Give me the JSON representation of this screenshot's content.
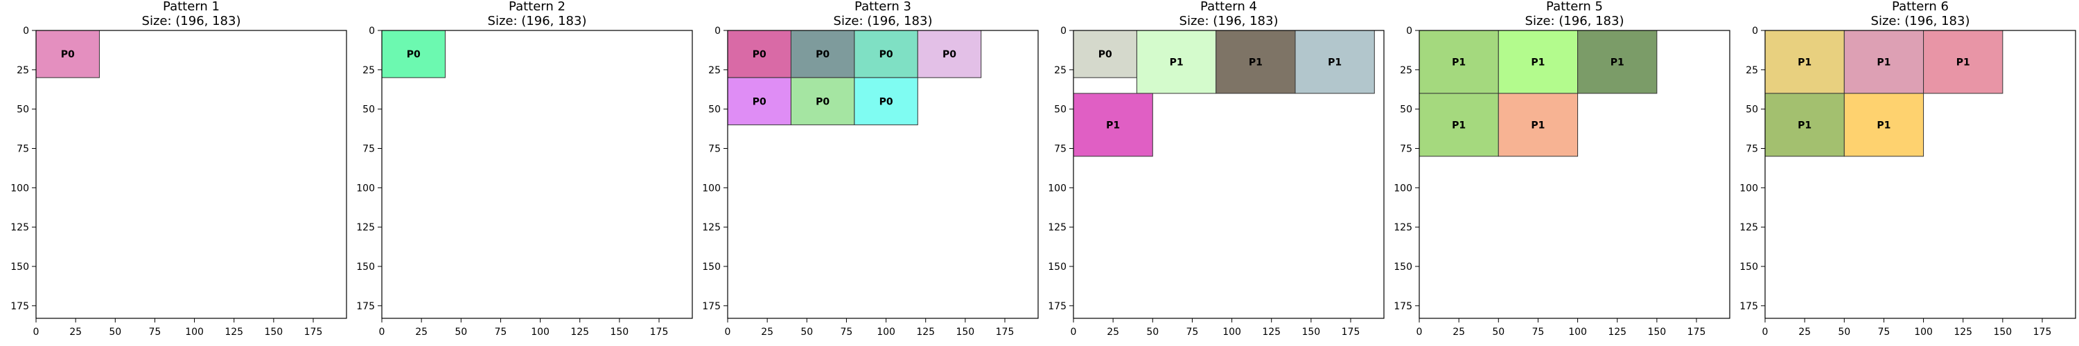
{
  "chart_data": [
    {
      "type": "rect-layout",
      "title": "Pattern 1",
      "subtitle": "Size: (196, 183)",
      "xlim": [
        0,
        196
      ],
      "ylim": [
        0,
        183
      ],
      "y_inverted": true,
      "xticks": [
        0,
        25,
        50,
        75,
        100,
        125,
        150,
        175
      ],
      "yticks": [
        0,
        25,
        50,
        75,
        100,
        125,
        150,
        175
      ],
      "grid": false,
      "rects": [
        {
          "label": "P0",
          "x": 0,
          "y": 0,
          "w": 40,
          "h": 30,
          "color": "#e48fbf"
        }
      ]
    },
    {
      "type": "rect-layout",
      "title": "Pattern 2",
      "subtitle": "Size: (196, 183)",
      "xlim": [
        0,
        196
      ],
      "ylim": [
        0,
        183
      ],
      "y_inverted": true,
      "xticks": [
        0,
        25,
        50,
        75,
        100,
        125,
        150,
        175
      ],
      "yticks": [
        0,
        25,
        50,
        75,
        100,
        125,
        150,
        175
      ],
      "grid": false,
      "rects": [
        {
          "label": "P0",
          "x": 0,
          "y": 0,
          "w": 40,
          "h": 30,
          "color": "#6cf9b0"
        }
      ]
    },
    {
      "type": "rect-layout",
      "title": "Pattern 3",
      "subtitle": "Size: (196, 183)",
      "xlim": [
        0,
        196
      ],
      "ylim": [
        0,
        183
      ],
      "y_inverted": true,
      "xticks": [
        0,
        25,
        50,
        75,
        100,
        125,
        150,
        175
      ],
      "yticks": [
        0,
        25,
        50,
        75,
        100,
        125,
        150,
        175
      ],
      "grid": false,
      "rects": [
        {
          "label": "P0",
          "x": 0,
          "y": 0,
          "w": 40,
          "h": 30,
          "color": "#d96aa6"
        },
        {
          "label": "P0",
          "x": 40,
          "y": 0,
          "w": 40,
          "h": 30,
          "color": "#7e9b9c"
        },
        {
          "label": "P0",
          "x": 80,
          "y": 0,
          "w": 40,
          "h": 30,
          "color": "#7fe0c4"
        },
        {
          "label": "P0",
          "x": 120,
          "y": 0,
          "w": 40,
          "h": 30,
          "color": "#e3c0e7"
        },
        {
          "label": "P0",
          "x": 0,
          "y": 30,
          "w": 40,
          "h": 30,
          "color": "#df8df5"
        },
        {
          "label": "P0",
          "x": 40,
          "y": 30,
          "w": 40,
          "h": 30,
          "color": "#a5e5a2"
        },
        {
          "label": "P0",
          "x": 80,
          "y": 30,
          "w": 40,
          "h": 30,
          "color": "#7ffcf2"
        }
      ]
    },
    {
      "type": "rect-layout",
      "title": "Pattern 4",
      "subtitle": "Size: (196, 183)",
      "xlim": [
        0,
        196
      ],
      "ylim": [
        0,
        183
      ],
      "y_inverted": true,
      "xticks": [
        0,
        25,
        50,
        75,
        100,
        125,
        150,
        175
      ],
      "yticks": [
        0,
        25,
        50,
        75,
        100,
        125,
        150,
        175
      ],
      "grid": false,
      "rects": [
        {
          "label": "P0",
          "x": 0,
          "y": 0,
          "w": 40,
          "h": 30,
          "color": "#d5d9cc"
        },
        {
          "label": "P1",
          "x": 40,
          "y": 0,
          "w": 50,
          "h": 40,
          "color": "#d4fbcc"
        },
        {
          "label": "P1",
          "x": 90,
          "y": 0,
          "w": 50,
          "h": 40,
          "color": "#7e7466"
        },
        {
          "label": "P1",
          "x": 140,
          "y": 0,
          "w": 50,
          "h": 40,
          "color": "#b2c6cc"
        },
        {
          "label": "P1",
          "x": 0,
          "y": 40,
          "w": 50,
          "h": 40,
          "color": "#e05fc4"
        }
      ]
    },
    {
      "type": "rect-layout",
      "title": "Pattern 5",
      "subtitle": "Size: (196, 183)",
      "xlim": [
        0,
        196
      ],
      "ylim": [
        0,
        183
      ],
      "y_inverted": true,
      "xticks": [
        0,
        25,
        50,
        75,
        100,
        125,
        150,
        175
      ],
      "yticks": [
        0,
        25,
        50,
        75,
        100,
        125,
        150,
        175
      ],
      "grid": false,
      "rects": [
        {
          "label": "P1",
          "x": 0,
          "y": 0,
          "w": 50,
          "h": 40,
          "color": "#a4d97e"
        },
        {
          "label": "P1",
          "x": 50,
          "y": 0,
          "w": 50,
          "h": 40,
          "color": "#b3fb8d"
        },
        {
          "label": "P1",
          "x": 100,
          "y": 0,
          "w": 50,
          "h": 40,
          "color": "#7b9c68"
        },
        {
          "label": "P1",
          "x": 0,
          "y": 40,
          "w": 50,
          "h": 40,
          "color": "#a5d97e"
        },
        {
          "label": "P1",
          "x": 50,
          "y": 40,
          "w": 50,
          "h": 40,
          "color": "#f7b393"
        }
      ]
    },
    {
      "type": "rect-layout",
      "title": "Pattern 6",
      "subtitle": "Size: (196, 183)",
      "xlim": [
        0,
        196
      ],
      "ylim": [
        0,
        183
      ],
      "y_inverted": true,
      "xticks": [
        0,
        25,
        50,
        75,
        100,
        125,
        150,
        175
      ],
      "yticks": [
        0,
        25,
        50,
        75,
        100,
        125,
        150,
        175
      ],
      "grid": false,
      "rects": [
        {
          "label": "P1",
          "x": 0,
          "y": 0,
          "w": 50,
          "h": 40,
          "color": "#e8d07f"
        },
        {
          "label": "P1",
          "x": 50,
          "y": 0,
          "w": 50,
          "h": 40,
          "color": "#dda0b4"
        },
        {
          "label": "P1",
          "x": 100,
          "y": 0,
          "w": 50,
          "h": 40,
          "color": "#e895a6"
        },
        {
          "label": "P1",
          "x": 0,
          "y": 40,
          "w": 50,
          "h": 40,
          "color": "#a3c06f"
        },
        {
          "label": "P1",
          "x": 50,
          "y": 40,
          "w": 50,
          "h": 40,
          "color": "#fed26f"
        }
      ]
    }
  ]
}
